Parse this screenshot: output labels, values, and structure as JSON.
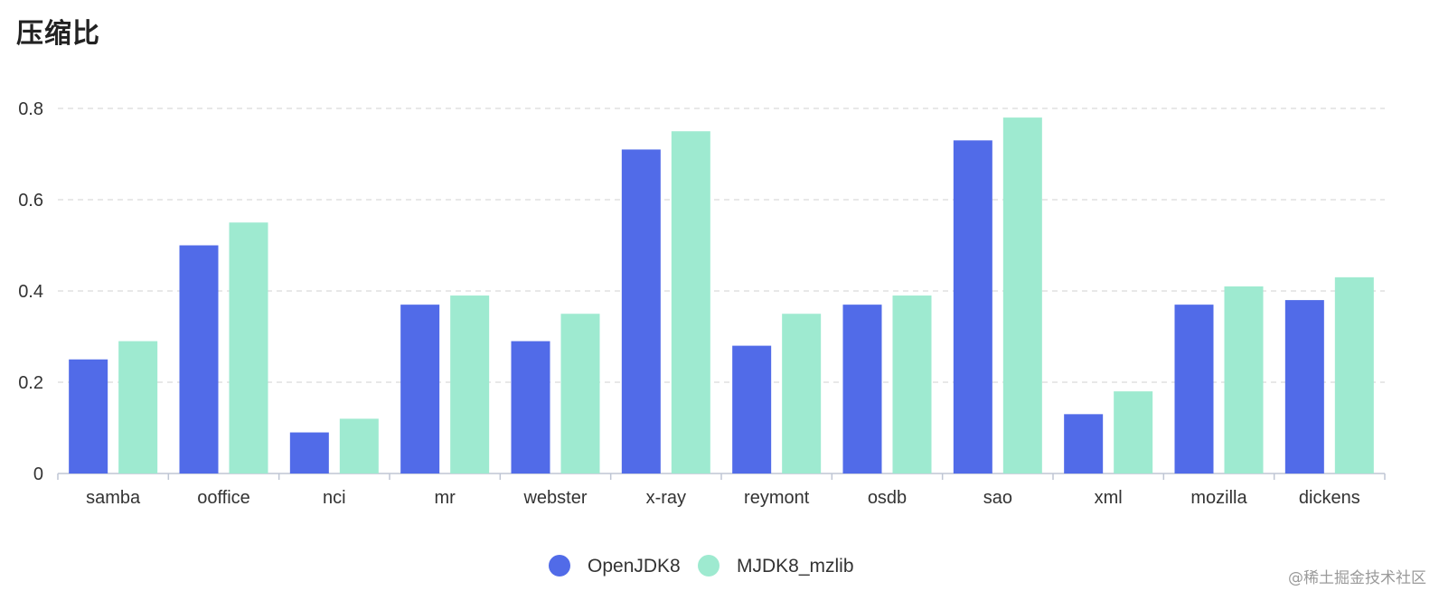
{
  "chart_data": {
    "type": "bar",
    "title": "压缩比",
    "xlabel": "",
    "ylabel": "",
    "categories": [
      "samba",
      "ooffice",
      "nci",
      "mr",
      "webster",
      "x-ray",
      "reymont",
      "osdb",
      "sao",
      "xml",
      "mozilla",
      "dickens"
    ],
    "series": [
      {
        "name": "OpenJDK8",
        "color": "#516BE8",
        "values": [
          0.25,
          0.5,
          0.09,
          0.37,
          0.29,
          0.71,
          0.28,
          0.37,
          0.73,
          0.13,
          0.37,
          0.38
        ]
      },
      {
        "name": "MJDK8_mzlib",
        "color": "#9EEAD0",
        "values": [
          0.29,
          0.55,
          0.12,
          0.39,
          0.35,
          0.75,
          0.35,
          0.39,
          0.78,
          0.18,
          0.41,
          0.43
        ]
      }
    ],
    "ylim": [
      0,
      0.8
    ],
    "yticks": [
      "0",
      "0.2",
      "0.4",
      "0.6",
      "0.8"
    ],
    "grid": true,
    "legend_position": "bottom-center"
  },
  "watermark": "@稀土掘金技术社区"
}
